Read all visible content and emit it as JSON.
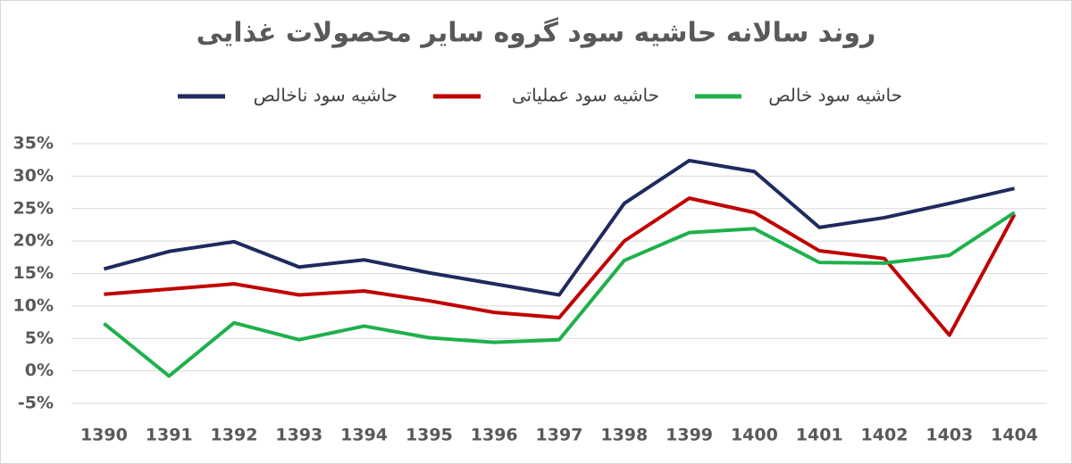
{
  "chart_data": {
    "type": "line",
    "title": "روند سالانه حاشیه سود گروه سایر محصولات غذایی",
    "categories": [
      "1390",
      "1391",
      "1392",
      "1393",
      "1394",
      "1395",
      "1396",
      "1397",
      "1398",
      "1399",
      "1400",
      "1401",
      "1402",
      "1403",
      "1404"
    ],
    "series": [
      {
        "name": "حاشیه سود ناخالص",
        "color": "#1f2a5e",
        "values": [
          15.7,
          18.4,
          19.9,
          16.0,
          17.1,
          15.1,
          13.4,
          11.7,
          25.8,
          32.4,
          30.7,
          22.1,
          23.6,
          25.8,
          28.1
        ]
      },
      {
        "name": "حاشیه سود عملیاتی",
        "color": "#c00000",
        "values": [
          11.8,
          12.6,
          13.4,
          11.7,
          12.3,
          10.8,
          9.0,
          8.2,
          20.0,
          26.6,
          24.4,
          18.5,
          17.3,
          5.5,
          24.1
        ]
      },
      {
        "name": "حاشیه سود خالص",
        "color": "#1fb04b",
        "values": [
          7.3,
          -0.8,
          7.4,
          4.8,
          6.9,
          5.1,
          4.4,
          4.8,
          17.0,
          21.3,
          21.9,
          16.7,
          16.6,
          17.8,
          24.4
        ]
      }
    ],
    "ylim": [
      -5,
      35
    ],
    "yticks": [
      {
        "value": -5,
        "label": "-5%"
      },
      {
        "value": 0,
        "label": "0%"
      },
      {
        "value": 5,
        "label": "5%"
      },
      {
        "value": 10,
        "label": "10%"
      },
      {
        "value": 15,
        "label": "15%"
      },
      {
        "value": 20,
        "label": "20%"
      },
      {
        "value": 25,
        "label": "25%"
      },
      {
        "value": 30,
        "label": "30%"
      },
      {
        "value": 35,
        "label": "35%"
      }
    ],
    "grid": true
  }
}
